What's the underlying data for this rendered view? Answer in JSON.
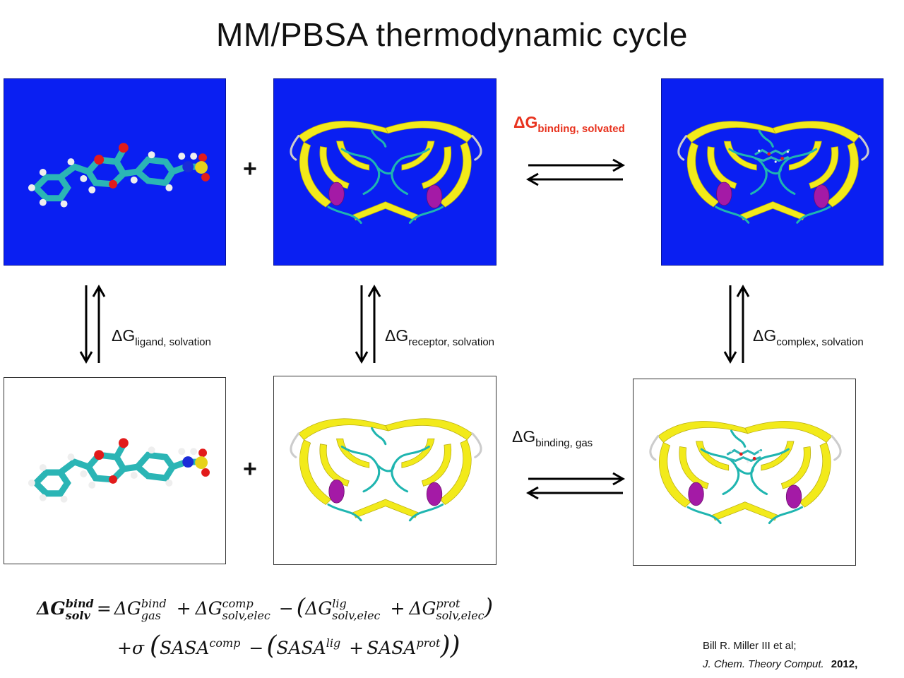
{
  "title": "MM/PBSA thermodynamic cycle",
  "plus": "+",
  "labels": {
    "binding_solvated": {
      "main": "ΔG",
      "sub": "binding, solvated"
    },
    "binding_gas": {
      "main": "ΔG",
      "sub": "binding, gas"
    },
    "ligand_solvation": {
      "main": "ΔG",
      "sub": "ligand, solvation"
    },
    "receptor_solvation": {
      "main": "ΔG",
      "sub": "receptor, solvation"
    },
    "complex_solvation": {
      "main": "ΔG",
      "sub": "complex, solvation"
    }
  },
  "equation": {
    "lhs_main": "ΔG",
    "lhs_sup": "bind",
    "lhs_sub": "solv",
    "eq_sign": "=",
    "t1_main": "ΔG",
    "t1_sup": "bind",
    "t1_sub": "gas",
    "plus": "+",
    "t2_main": "ΔG",
    "t2_sup": "comp",
    "t2_sub": "solv,elec",
    "minus": "−",
    "open": "(",
    "t3_main": "ΔG",
    "t3_sup": "lig",
    "t3_sub": "solv,elec",
    "t4_main": "ΔG",
    "t4_sup": "prot",
    "t4_sub": "solv,elec",
    "close": ")",
    "line2_prefix": "+σ",
    "sasa": "SASA",
    "sasa_comp": "comp",
    "sasa_lig": "lig",
    "sasa_prot": "prot"
  },
  "reference": {
    "authors": "Bill R. Miller III et al;",
    "journal": "J. Chem. Theory Comput.",
    "year": "2012,"
  },
  "colors": {
    "solvated_bg": "#0a1ff2",
    "highlight": "#e8331f",
    "helix": "#a41aa6",
    "strand": "#f2ea1a",
    "coil": "#1fb5b0"
  }
}
